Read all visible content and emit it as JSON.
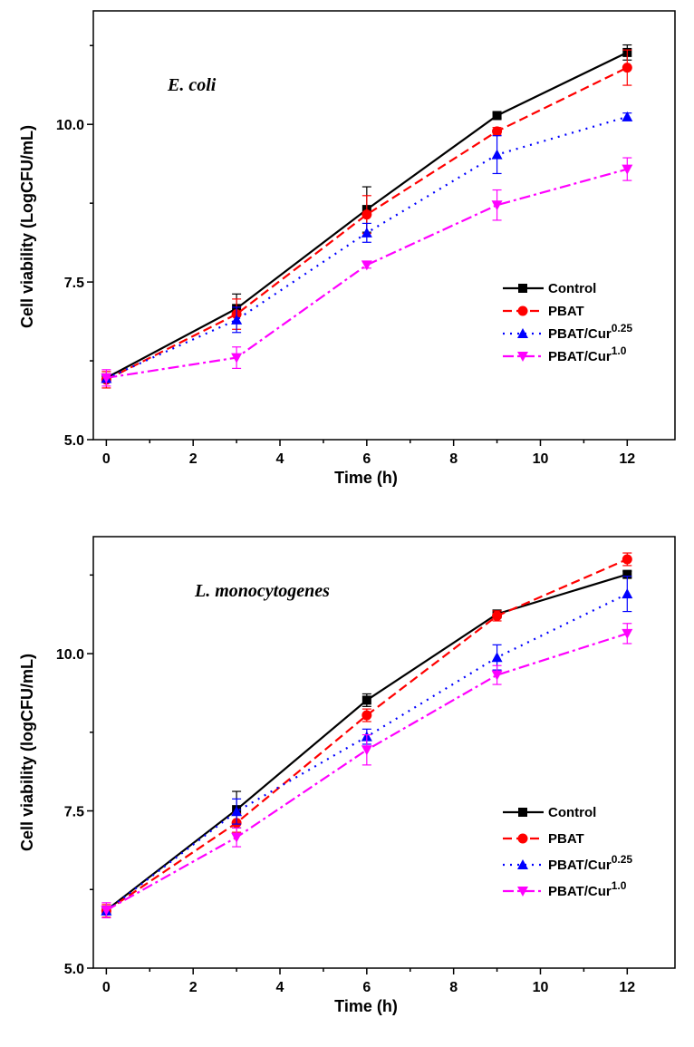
{
  "chart_data": [
    {
      "type": "line",
      "annotation": "E. coli",
      "xlabel": "Time (h)",
      "ylabel": "Cell viability (LogCFU/mL)",
      "xlim": [
        -0.3,
        13.1
      ],
      "ylim": [
        5.0,
        11.8
      ],
      "xticks": [
        0,
        2,
        4,
        6,
        8,
        10,
        12
      ],
      "xtick_labels": [
        "0",
        "2",
        "4",
        "6",
        "8",
        "10",
        "12"
      ],
      "yticks": [
        5.0,
        7.5,
        10.0
      ],
      "ytick_labels": [
        "5.0",
        "7.5",
        "10.0"
      ],
      "legend_position": "center-right",
      "x": [
        0,
        3,
        6,
        9,
        12
      ],
      "series": [
        {
          "name": "Control",
          "sup": "",
          "color": "#000000",
          "marker": "square",
          "values": [
            5.98,
            7.08,
            8.65,
            10.14,
            11.14
          ],
          "errors": [
            0.05,
            0.23,
            0.36,
            0.04,
            0.12
          ]
        },
        {
          "name": "PBAT",
          "sup": "",
          "color": "#ff0000",
          "marker": "circle",
          "values": [
            5.95,
            6.99,
            8.57,
            9.89,
            10.9
          ],
          "errors": [
            0.13,
            0.24,
            0.3,
            0.06,
            0.28
          ]
        },
        {
          "name": "PBAT/Cur",
          "sup": "0.25",
          "color": "#0000ff",
          "marker": "triangle-up",
          "values": [
            5.97,
            6.9,
            8.28,
            9.52,
            10.12
          ],
          "errors": [
            0.05,
            0.2,
            0.15,
            0.3,
            0.06
          ]
        },
        {
          "name": "PBAT/Cur",
          "sup": "1.0",
          "color": "#ff00ff",
          "marker": "triangle-down",
          "values": [
            5.98,
            6.3,
            7.77,
            8.72,
            9.29
          ],
          "errors": [
            0.13,
            0.17,
            0.05,
            0.24,
            0.18
          ]
        }
      ]
    },
    {
      "type": "line",
      "annotation": "L. monocytogenes",
      "xlabel": "Time (h)",
      "ylabel": "Cell viability (logCFU/mL)",
      "xlim": [
        -0.3,
        13.1
      ],
      "ylim": [
        5.0,
        11.86
      ],
      "xticks": [
        0,
        2,
        4,
        6,
        8,
        10,
        12
      ],
      "xtick_labels": [
        "0",
        "2",
        "4",
        "6",
        "8",
        "10",
        "12"
      ],
      "yticks": [
        5.0,
        7.5,
        10.0
      ],
      "ytick_labels": [
        "5.0",
        "7.5",
        "10.0"
      ],
      "legend_position": "bottom-right",
      "x": [
        0,
        3,
        6,
        9,
        12
      ],
      "series": [
        {
          "name": "Control",
          "sup": "",
          "color": "#000000",
          "marker": "square",
          "values": [
            5.92,
            7.52,
            9.26,
            10.63,
            11.26
          ],
          "errors": [
            0.05,
            0.29,
            0.1,
            0.06,
            0.05
          ]
        },
        {
          "name": "PBAT",
          "sup": "",
          "color": "#ff0000",
          "marker": "circle",
          "values": [
            5.91,
            7.31,
            9.02,
            10.6,
            11.5
          ],
          "errors": [
            0.1,
            0.15,
            0.1,
            0.08,
            0.1
          ]
        },
        {
          "name": "PBAT/Cur",
          "sup": "0.25",
          "color": "#0000ff",
          "marker": "triangle-up",
          "values": [
            5.91,
            7.49,
            8.68,
            9.94,
            10.95
          ],
          "errors": [
            0.05,
            0.2,
            0.12,
            0.2,
            0.28
          ]
        },
        {
          "name": "PBAT/Cur",
          "sup": "1.0",
          "color": "#ff00ff",
          "marker": "triangle-down",
          "values": [
            5.92,
            7.08,
            8.47,
            9.66,
            10.32
          ],
          "errors": [
            0.12,
            0.15,
            0.24,
            0.15,
            0.16
          ]
        }
      ]
    }
  ]
}
